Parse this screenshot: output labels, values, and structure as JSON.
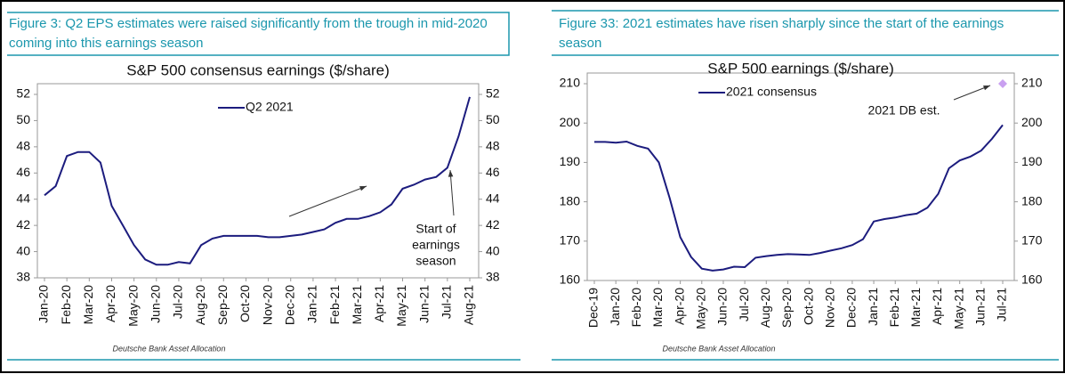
{
  "chart_data": [
    {
      "type": "line",
      "caption": "Figure 3: Q2 EPS estimates were raised significantly from the trough in mid-2020 coming into this earnings season",
      "title": "S&P 500 consensus earnings ($/share)",
      "categories": [
        "Jan-20",
        null,
        "Feb-20",
        null,
        "Mar-20",
        null,
        "Apr-20",
        null,
        "May-20",
        null,
        "Jun-20",
        null,
        "Jul-20",
        null,
        "Aug-20",
        null,
        "Sep-20",
        null,
        "Oct-20",
        null,
        "Nov-20",
        null,
        "Dec-20",
        null,
        "Jan-21",
        null,
        "Feb-21",
        null,
        "Mar-21",
        null,
        "Apr-21",
        null,
        "May-21",
        null,
        "Jun-21",
        null,
        "Jul-21",
        null,
        "Aug-21"
      ],
      "series": [
        {
          "name": "Q2 2021",
          "color": "#1c1c7e",
          "values": [
            44.3,
            45.0,
            47.3,
            47.6,
            47.6,
            46.8,
            43.5,
            42.0,
            40.5,
            39.4,
            39.0,
            39.0,
            39.2,
            39.1,
            40.5,
            41.0,
            41.2,
            41.2,
            41.2,
            41.2,
            41.1,
            41.1,
            41.2,
            41.3,
            41.5,
            41.7,
            42.2,
            42.5,
            42.5,
            42.7,
            43.0,
            43.6,
            44.8,
            45.1,
            45.5,
            45.7,
            46.4,
            48.8,
            51.8
          ]
        }
      ],
      "ylim": [
        38,
        52
      ],
      "yticks": [
        38,
        40,
        42,
        44,
        46,
        48,
        50,
        52
      ],
      "y2lim": [
        38,
        52
      ],
      "y2ticks": [
        38,
        40,
        42,
        44,
        46,
        48,
        50,
        52
      ],
      "legend": "upper center",
      "annotation": [
        "Start of",
        "earnings",
        "season"
      ],
      "source": "Deutsche Bank Asset Allocation"
    },
    {
      "type": "line",
      "caption": "Figure 33: 2021 estimates have risen sharply since the start of the earnings season",
      "title": "S&P 500 earnings ($/share)",
      "categories": [
        "Dec-19",
        null,
        "Jan-20",
        null,
        "Feb-20",
        null,
        "Mar-20",
        null,
        "Apr-20",
        null,
        "May-20",
        null,
        "Jun-20",
        null,
        "Jul-20",
        null,
        "Aug-20",
        null,
        "Sep-20",
        null,
        "Oct-20",
        null,
        "Nov-20",
        null,
        "Dec-20",
        null,
        "Jan-21",
        null,
        "Feb-21",
        null,
        "Mar-21",
        null,
        "Apr-21",
        null,
        "May-21",
        null,
        "Jun-21",
        null,
        "Jul-21"
      ],
      "series": [
        {
          "name": "2021 consensus",
          "color": "#1c1c7e",
          "values": [
            195.2,
            195.2,
            195.0,
            195.3,
            194.2,
            193.5,
            190.0,
            181.0,
            171.0,
            166.0,
            163.0,
            162.5,
            162.8,
            163.5,
            163.4,
            165.8,
            166.2,
            166.5,
            166.7,
            166.6,
            166.5,
            167.0,
            167.6,
            168.2,
            169.0,
            170.5,
            175.0,
            175.6,
            176.0,
            176.6,
            177.0,
            178.5,
            182.0,
            188.5,
            190.5,
            191.5,
            193.0,
            196.0,
            199.5
          ]
        },
        {
          "name": "2021 DB est.",
          "color": "#c9a0f0",
          "marker": "diamond",
          "values": [
            null,
            null,
            null,
            null,
            null,
            null,
            null,
            null,
            null,
            null,
            null,
            null,
            null,
            null,
            null,
            null,
            null,
            null,
            null,
            null,
            null,
            null,
            null,
            null,
            null,
            null,
            null,
            null,
            null,
            null,
            null,
            null,
            null,
            null,
            null,
            null,
            null,
            null,
            210
          ]
        }
      ],
      "ylim": [
        160,
        210
      ],
      "yticks": [
        160,
        170,
        180,
        190,
        200,
        210
      ],
      "y2lim": [
        160,
        210
      ],
      "y2ticks": [
        160,
        170,
        180,
        190,
        200,
        210
      ],
      "legend": "upper center",
      "source": "Deutsche Bank Asset Allocation"
    }
  ]
}
